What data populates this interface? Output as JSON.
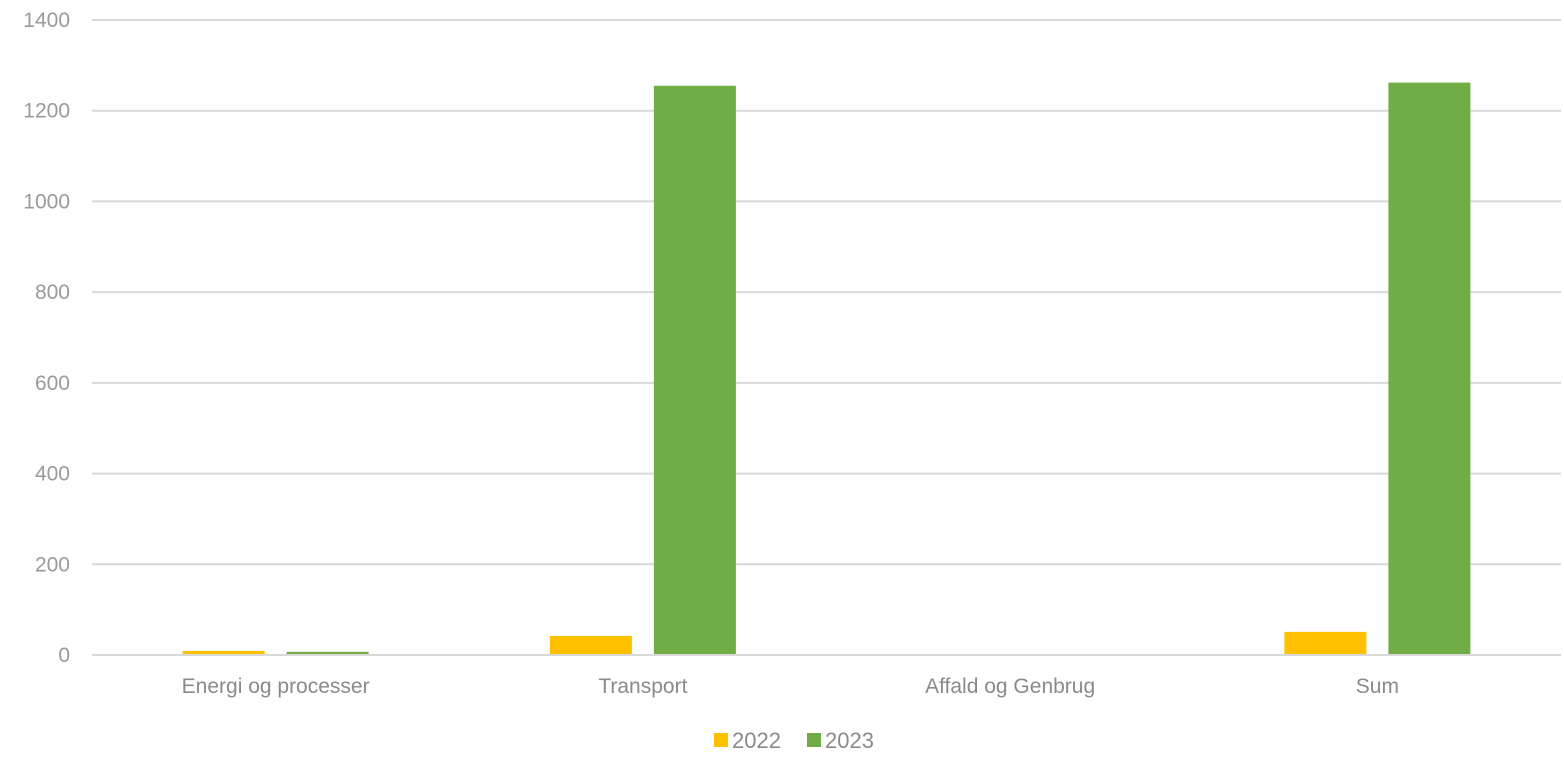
{
  "chart_data": {
    "type": "bar",
    "categories": [
      "Energi og processer",
      "Transport",
      "Affald og Genbrug",
      "Sum"
    ],
    "series": [
      {
        "name": "2022",
        "color": "#FFC000",
        "values": [
          9,
          42,
          0,
          51
        ]
      },
      {
        "name": "2023",
        "color": "#70AD47",
        "values": [
          7,
          1255,
          0,
          1262
        ]
      }
    ],
    "title": "",
    "xlabel": "",
    "ylabel": "",
    "ylim": [
      0,
      1400
    ],
    "yticks": [
      0,
      200,
      400,
      600,
      800,
      1000,
      1200,
      1400
    ],
    "grid": true,
    "legend": "bottom-center"
  }
}
